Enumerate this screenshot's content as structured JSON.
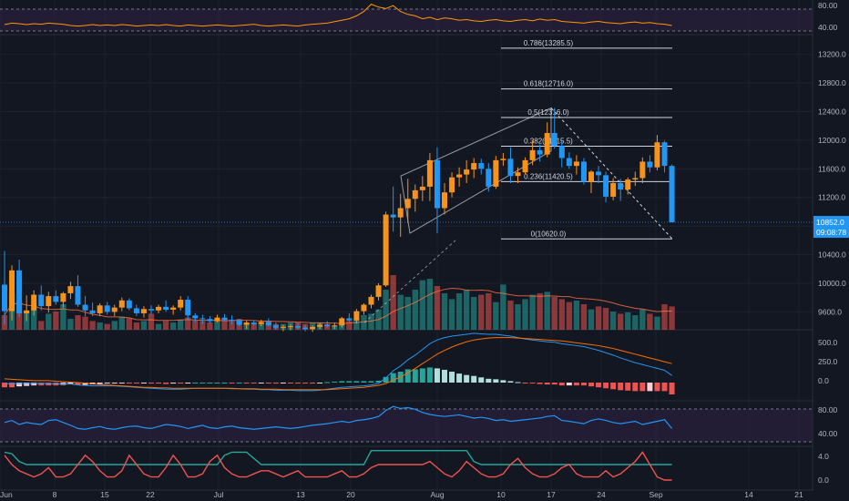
{
  "theme": {
    "background": "#131722",
    "grid": "#1e2230",
    "axis_text": "#b2b5be",
    "up": "#f7931a",
    "down": "#2196f3",
    "vol_up": "#26a69a",
    "vol_down": "#ef5350",
    "rsi_band": "#2a1f3d",
    "rsi_line": "#2196f3",
    "rsi_top_line": "#ff9800",
    "macd_line": "#2196f3",
    "signal_line": "#ff6d00",
    "hist_up_strong": "#26a69a",
    "hist_up_weak": "#b2dfdb",
    "hist_down_strong": "#ef5350",
    "hist_down_weak": "#ffcdd2",
    "stoch_green": "#26a69a",
    "stoch_red": "#ef5350",
    "price_tag": "#2196f3",
    "fib_line": "#d1d4dc"
  },
  "price_axis": {
    "ticks": [
      "13200.0",
      "12800.0",
      "12400.0",
      "12000.0",
      "11600.0",
      "11200.0",
      "10800.0",
      "10400.0",
      "10000.0",
      "9600.0"
    ]
  },
  "time_axis": {
    "labels": [
      "Jun",
      "8",
      "15",
      "22",
      "Jul",
      "13",
      "20",
      "Aug",
      "10",
      "17",
      "24",
      "Sep",
      "14",
      "21"
    ]
  },
  "last_price": {
    "value": "10852.0",
    "countdown": "09:08:78"
  },
  "rsi_top": {
    "ticks": [
      "80.00",
      "40.00"
    ]
  },
  "macd": {
    "ticks": [
      "500.0",
      "250.0",
      "0.0"
    ]
  },
  "rsi_mid": {
    "ticks": [
      "80.00",
      "40.00"
    ]
  },
  "stoch": {
    "ticks": [
      "4.0",
      "0.0"
    ]
  },
  "fib_levels": [
    {
      "label": "0.786(13285.5)",
      "price": 13285.5
    },
    {
      "label": "0.618(12716.0)",
      "price": 12716.0
    },
    {
      "label": "0.5(12316.0)",
      "price": 12316.0
    },
    {
      "label": "0.382(11915.5)",
      "price": 11915.5
    },
    {
      "label": "0.236(11420.5)",
      "price": 11420.5
    },
    {
      "label": "0(10620.0)",
      "price": 10620.0
    }
  ],
  "chart_data": {
    "type": "candlestick",
    "ylim": [
      9350,
      13450
    ],
    "candles": [
      [
        9980,
        10450,
        9420,
        9610
      ],
      [
        9610,
        10250,
        9480,
        10180
      ],
      [
        10180,
        10330,
        9530,
        9580
      ],
      [
        9580,
        9830,
        9470,
        9620
      ],
      [
        9620,
        9900,
        9550,
        9840
      ],
      [
        9840,
        9970,
        9620,
        9680
      ],
      [
        9680,
        9880,
        9590,
        9820
      ],
      [
        9820,
        9900,
        9700,
        9740
      ],
      [
        9740,
        9880,
        9660,
        9860
      ],
      [
        9860,
        10020,
        9780,
        9960
      ],
      [
        9960,
        10110,
        9670,
        9700
      ],
      [
        9700,
        9820,
        9540,
        9620
      ],
      [
        9620,
        9730,
        9540,
        9580
      ],
      [
        9580,
        9720,
        9540,
        9690
      ],
      [
        9690,
        9740,
        9560,
        9600
      ],
      [
        9600,
        9700,
        9540,
        9660
      ],
      [
        9660,
        9800,
        9610,
        9760
      ],
      [
        9760,
        9790,
        9620,
        9650
      ],
      [
        9650,
        9700,
        9540,
        9580
      ],
      [
        9580,
        9680,
        9520,
        9640
      ],
      [
        9640,
        9690,
        9560,
        9620
      ],
      [
        9620,
        9700,
        9580,
        9670
      ],
      [
        9670,
        9760,
        9600,
        9630
      ],
      [
        9630,
        9690,
        9560,
        9660
      ],
      [
        9660,
        9820,
        9620,
        9770
      ],
      [
        9770,
        9820,
        9480,
        9550
      ],
      [
        9550,
        9580,
        9460,
        9510
      ],
      [
        9510,
        9560,
        9430,
        9500
      ],
      [
        9500,
        9540,
        9440,
        9470
      ],
      [
        9470,
        9560,
        9450,
        9520
      ],
      [
        9520,
        9570,
        9470,
        9490
      ],
      [
        9490,
        9550,
        9430,
        9480
      ],
      [
        9480,
        9500,
        9400,
        9420
      ],
      [
        9420,
        9480,
        9360,
        9450
      ],
      [
        9450,
        9480,
        9410,
        9430
      ],
      [
        9430,
        9490,
        9400,
        9460
      ],
      [
        9460,
        9510,
        9400,
        9410
      ],
      [
        9410,
        9450,
        9350,
        9380
      ],
      [
        9380,
        9420,
        9330,
        9390
      ],
      [
        9390,
        9430,
        9340,
        9400
      ],
      [
        9400,
        9440,
        9350,
        9380
      ],
      [
        9380,
        9420,
        9330,
        9360
      ],
      [
        9360,
        9410,
        9320,
        9390
      ],
      [
        9390,
        9450,
        9360,
        9420
      ],
      [
        9420,
        9470,
        9380,
        9400
      ],
      [
        9400,
        9450,
        9360,
        9410
      ],
      [
        9410,
        9530,
        9380,
        9510
      ],
      [
        9510,
        9580,
        9460,
        9480
      ],
      [
        9480,
        9640,
        9440,
        9610
      ],
      [
        9610,
        9720,
        9560,
        9700
      ],
      [
        9700,
        9840,
        9650,
        9810
      ],
      [
        9810,
        10000,
        9760,
        9970
      ],
      [
        9970,
        11000,
        9950,
        10960
      ],
      [
        10960,
        11350,
        10720,
        10920
      ],
      [
        10920,
        11250,
        10650,
        11050
      ],
      [
        11050,
        11460,
        10840,
        11180
      ],
      [
        11180,
        11380,
        11000,
        11300
      ],
      [
        11300,
        11500,
        11150,
        11350
      ],
      [
        11350,
        11820,
        11150,
        11720
      ],
      [
        11720,
        11900,
        10700,
        11050
      ],
      [
        11050,
        11400,
        10960,
        11270
      ],
      [
        11270,
        11550,
        11200,
        11480
      ],
      [
        11480,
        11620,
        11350,
        11520
      ],
      [
        11520,
        11720,
        11400,
        11590
      ],
      [
        11590,
        11750,
        11470,
        11680
      ],
      [
        11680,
        11740,
        11520,
        11600
      ],
      [
        11600,
        11680,
        11280,
        11350
      ],
      [
        11350,
        11780,
        11320,
        11720
      ],
      [
        11720,
        11820,
        11640,
        11740
      ],
      [
        11740,
        11900,
        11400,
        11500
      ],
      [
        11500,
        11620,
        11400,
        11550
      ],
      [
        11550,
        11760,
        11520,
        11720
      ],
      [
        11720,
        12000,
        11650,
        11860
      ],
      [
        11860,
        11940,
        11700,
        11800
      ],
      [
        11800,
        12250,
        11760,
        12100
      ],
      [
        12100,
        12450,
        11880,
        11920
      ],
      [
        11920,
        11990,
        11620,
        11750
      ],
      [
        11750,
        11830,
        11600,
        11640
      ],
      [
        11640,
        11790,
        11520,
        11700
      ],
      [
        11700,
        11750,
        11380,
        11420
      ],
      [
        11420,
        11580,
        11260,
        11560
      ],
      [
        11560,
        11640,
        11400,
        11510
      ],
      [
        11510,
        11560,
        11130,
        11210
      ],
      [
        11210,
        11470,
        11160,
        11400
      ],
      [
        11400,
        11460,
        11150,
        11310
      ],
      [
        11310,
        11480,
        11240,
        11450
      ],
      [
        11450,
        11560,
        11360,
        11470
      ],
      [
        11470,
        11760,
        11400,
        11700
      ],
      [
        11700,
        11790,
        11550,
        11620
      ],
      [
        11620,
        12070,
        11580,
        11970
      ],
      [
        11970,
        11990,
        11550,
        11640
      ],
      [
        11640,
        11660,
        10850,
        10852
      ]
    ],
    "volume": [
      0.2,
      0.5,
      0.4,
      0.25,
      0.28,
      0.12,
      0.22,
      0.25,
      0.35,
      0.15,
      0.2,
      0.18,
      0.12,
      0.1,
      0.08,
      0.12,
      0.18,
      0.16,
      0.1,
      0.12,
      0.22,
      0.08,
      0.12,
      0.1,
      0.14,
      0.17,
      0.13,
      0.12,
      0.1,
      0.12,
      0.15,
      0.12,
      0.15,
      0.1,
      0.1,
      0.1,
      0.12,
      0.08,
      0.08,
      0.1,
      0.1,
      0.08,
      0.1,
      0.1,
      0.08,
      0.06,
      0.1,
      0.12,
      0.15,
      0.2,
      0.22,
      0.28,
      0.55,
      0.75,
      0.48,
      0.45,
      0.55,
      0.68,
      0.7,
      0.6,
      0.5,
      0.42,
      0.5,
      0.55,
      0.45,
      0.48,
      0.5,
      0.38,
      0.62,
      0.4,
      0.35,
      0.42,
      0.48,
      0.5,
      0.52,
      0.45,
      0.42,
      0.38,
      0.4,
      0.35,
      0.28,
      0.32,
      0.3,
      0.25,
      0.22,
      0.24,
      0.2,
      0.28,
      0.22,
      0.18,
      0.35,
      0.32
    ],
    "macd": [
      -0.02,
      -0.03,
      -0.02,
      -0.02,
      -0.02,
      -0.02,
      -0.02,
      -0.03,
      -0.03,
      -0.03,
      -0.05,
      -0.06,
      -0.07,
      -0.07,
      -0.07,
      -0.07,
      -0.08,
      -0.09,
      -0.1,
      -0.11,
      -0.12,
      -0.13,
      -0.14,
      -0.14,
      -0.14,
      -0.13,
      -0.12,
      -0.12,
      -0.12,
      -0.12,
      -0.12,
      -0.13,
      -0.13,
      -0.14,
      -0.14,
      -0.15,
      -0.15,
      -0.16,
      -0.16,
      -0.16,
      -0.17,
      -0.17,
      -0.17,
      -0.16,
      -0.14,
      -0.12,
      -0.1,
      -0.09,
      -0.08,
      -0.07,
      -0.05,
      -0.02,
      0.1,
      0.25,
      0.35,
      0.48,
      0.58,
      0.7,
      0.82,
      0.9,
      0.95,
      0.98,
      1.0,
      1.02,
      1.04,
      1.03,
      1.02,
      1.02,
      1.0,
      0.98,
      0.95,
      0.92,
      0.9,
      0.88,
      0.86,
      0.85,
      0.82,
      0.8,
      0.78,
      0.76,
      0.72,
      0.68,
      0.63,
      0.58,
      0.52,
      0.47,
      0.42,
      0.38,
      0.34,
      0.3,
      0.26,
      0.15
    ],
    "signal": [
      0.08,
      0.07,
      0.06,
      0.05,
      0.04,
      0.04,
      0.04,
      0.03,
      0.02,
      0.01,
      0.0,
      -0.01,
      -0.03,
      -0.04,
      -0.05,
      -0.06,
      -0.07,
      -0.08,
      -0.09,
      -0.1,
      -0.1,
      -0.11,
      -0.11,
      -0.12,
      -0.12,
      -0.12,
      -0.12,
      -0.12,
      -0.12,
      -0.12,
      -0.12,
      -0.12,
      -0.13,
      -0.13,
      -0.13,
      -0.14,
      -0.14,
      -0.14,
      -0.15,
      -0.15,
      -0.15,
      -0.15,
      -0.15,
      -0.15,
      -0.15,
      -0.14,
      -0.13,
      -0.12,
      -0.11,
      -0.1,
      -0.08,
      -0.06,
      -0.02,
      0.05,
      0.12,
      0.2,
      0.3,
      0.4,
      0.5,
      0.6,
      0.68,
      0.75,
      0.81,
      0.86,
      0.9,
      0.92,
      0.94,
      0.95,
      0.95,
      0.95,
      0.94,
      0.93,
      0.92,
      0.91,
      0.9,
      0.89,
      0.88,
      0.86,
      0.84,
      0.82,
      0.8,
      0.78,
      0.75,
      0.72,
      0.68,
      0.64,
      0.6,
      0.56,
      0.52,
      0.48,
      0.44,
      0.4
    ],
    "rsi_mid": [
      0.55,
      0.6,
      0.5,
      0.55,
      0.52,
      0.5,
      0.6,
      0.62,
      0.55,
      0.48,
      0.4,
      0.38,
      0.42,
      0.45,
      0.4,
      0.38,
      0.42,
      0.45,
      0.46,
      0.42,
      0.4,
      0.45,
      0.5,
      0.48,
      0.45,
      0.4,
      0.44,
      0.48,
      0.42,
      0.4,
      0.44,
      0.46,
      0.42,
      0.4,
      0.38,
      0.4,
      0.42,
      0.44,
      0.42,
      0.4,
      0.42,
      0.45,
      0.48,
      0.5,
      0.52,
      0.55,
      0.58,
      0.55,
      0.6,
      0.62,
      0.65,
      0.7,
      0.85,
      0.95,
      0.9,
      0.92,
      0.88,
      0.8,
      0.75,
      0.72,
      0.7,
      0.72,
      0.74,
      0.7,
      0.66,
      0.68,
      0.65,
      0.6,
      0.62,
      0.58,
      0.6,
      0.62,
      0.64,
      0.66,
      0.7,
      0.72,
      0.6,
      0.58,
      0.55,
      0.52,
      0.6,
      0.64,
      0.6,
      0.55,
      0.52,
      0.55,
      0.58,
      0.5,
      0.54,
      0.58,
      0.62,
      0.4
    ],
    "rsi_top": [
      0.25,
      0.3,
      0.28,
      0.25,
      0.28,
      0.26,
      0.3,
      0.28,
      0.26,
      0.22,
      0.2,
      0.22,
      0.25,
      0.22,
      0.24,
      0.22,
      0.25,
      0.23,
      0.2,
      0.22,
      0.24,
      0.22,
      0.25,
      0.22,
      0.2,
      0.24,
      0.22,
      0.2,
      0.22,
      0.24,
      0.22,
      0.2,
      0.22,
      0.24,
      0.26,
      0.22,
      0.2,
      0.22,
      0.24,
      0.22,
      0.2,
      0.24,
      0.26,
      0.28,
      0.3,
      0.35,
      0.4,
      0.45,
      0.55,
      0.7,
      0.95,
      0.85,
      0.8,
      0.9,
      0.7,
      0.6,
      0.55,
      0.45,
      0.5,
      0.42,
      0.48,
      0.45,
      0.4,
      0.42,
      0.38,
      0.36,
      0.4,
      0.42,
      0.38,
      0.36,
      0.4,
      0.42,
      0.38,
      0.44,
      0.4,
      0.42,
      0.36,
      0.34,
      0.32,
      0.3,
      0.34,
      0.36,
      0.32,
      0.3,
      0.28,
      0.32,
      0.34,
      0.3,
      0.32,
      0.28,
      0.26,
      0.22
    ],
    "stoch_green": [
      0.9,
      0.85,
      0.6,
      0.5,
      0.5,
      0.5,
      0.5,
      0.5,
      0.5,
      0.5,
      0.5,
      0.5,
      0.5,
      0.5,
      0.5,
      0.5,
      0.5,
      0.5,
      0.5,
      0.5,
      0.5,
      0.5,
      0.5,
      0.5,
      0.5,
      0.5,
      0.5,
      0.5,
      0.5,
      0.5,
      0.8,
      0.9,
      0.9,
      0.9,
      0.7,
      0.5,
      0.5,
      0.5,
      0.5,
      0.5,
      0.5,
      0.5,
      0.5,
      0.5,
      0.5,
      0.5,
      0.5,
      0.5,
      0.5,
      0.5,
      0.95,
      0.95,
      0.95,
      0.95,
      0.95,
      0.95,
      0.95,
      0.95,
      0.95,
      0.95,
      0.95,
      0.95,
      0.95,
      0.95,
      0.6,
      0.5,
      0.5,
      0.5,
      0.5,
      0.5,
      0.5,
      0.5,
      0.5,
      0.5,
      0.5,
      0.5,
      0.5,
      0.5,
      0.5,
      0.5,
      0.5,
      0.5,
      0.5,
      0.5,
      0.5,
      0.5,
      0.5,
      0.5,
      0.5,
      0.5,
      0.5,
      0.5
    ],
    "stoch_red": [
      0.8,
      0.5,
      0.3,
      0.2,
      0.1,
      0.2,
      0.4,
      0.1,
      0.1,
      0.2,
      0.5,
      0.8,
      0.6,
      0.3,
      0.1,
      0.1,
      0.3,
      0.8,
      0.5,
      0.2,
      0.1,
      0.1,
      0.4,
      0.8,
      0.5,
      0.1,
      0.1,
      0.2,
      0.6,
      0.8,
      0.4,
      0.2,
      0.1,
      0.1,
      0.2,
      0.3,
      0.3,
      0.2,
      0.1,
      0.2,
      0.3,
      0.1,
      0.1,
      0.1,
      0.1,
      0.2,
      0.3,
      0.1,
      0.1,
      0.2,
      0.4,
      0.5,
      0.5,
      0.5,
      0.5,
      0.5,
      0.5,
      0.5,
      0.6,
      0.4,
      0.2,
      0.1,
      0.3,
      0.6,
      0.4,
      0.2,
      0.1,
      0.1,
      0.2,
      0.5,
      0.7,
      0.4,
      0.2,
      0.1,
      0.1,
      0.2,
      0.4,
      0.5,
      0.2,
      0.1,
      0.1,
      0.1,
      0.3,
      0.1,
      0.2,
      0.4,
      0.6,
      0.9,
      0.5,
      0.1,
      0.0,
      0.0
    ]
  }
}
